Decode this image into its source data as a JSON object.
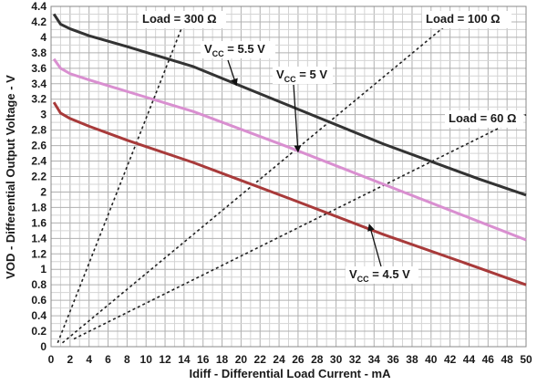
{
  "chart_data": {
    "type": "line",
    "xlabel": "Idiff - Differential Load Current  - mA",
    "ylabel": "VOD - Differential Output Voltage - V",
    "xlim": [
      0,
      50
    ],
    "ylim": [
      0,
      4.4
    ],
    "x_ticks": [
      "0",
      "2",
      "4",
      "6",
      "8",
      "10",
      "12",
      "14",
      "16",
      "18",
      "20",
      "22",
      "24",
      "26",
      "28",
      "30",
      "32",
      "34",
      "36",
      "38",
      "40",
      "42",
      "44",
      "46",
      "48",
      "50"
    ],
    "y_ticks": [
      "0",
      "0.2",
      "0.4",
      "0.6",
      "0.8",
      "1",
      "1.2",
      "1.4",
      "1.6",
      "1.8",
      "2",
      "2.2",
      "2.4",
      "2.6",
      "2.8",
      "3",
      "3.2",
      "3.4",
      "3.6",
      "3.8",
      "4",
      "4.2",
      "4.4"
    ],
    "grid": true,
    "series": [
      {
        "name": "VCC = 5.5 V",
        "label_main": "V",
        "label_sub": "CC",
        "label_rest": " = 5.5 V",
        "color": "#333333",
        "x": [
          0.3,
          1,
          2,
          4,
          8,
          15,
          25,
          35,
          45,
          50
        ],
        "y": [
          4.3,
          4.17,
          4.11,
          4.02,
          3.88,
          3.62,
          3.12,
          2.62,
          2.17,
          1.96
        ]
      },
      {
        "name": "VCC = 5 V",
        "label_main": "V",
        "label_sub": "CC",
        "label_rest": " = 5 V",
        "color": "#d98fd0",
        "x": [
          0.3,
          1,
          2,
          4,
          8,
          15,
          25,
          35,
          45,
          50
        ],
        "y": [
          3.72,
          3.6,
          3.53,
          3.45,
          3.3,
          3.04,
          2.58,
          2.1,
          1.62,
          1.38
        ]
      },
      {
        "name": "VCC = 4.5 V",
        "label_main": "V",
        "label_sub": "CC",
        "label_rest": " = 4.5 V",
        "color": "#a83a3a",
        "x": [
          0.3,
          1,
          2,
          4,
          8,
          15,
          25,
          35,
          45,
          50
        ],
        "y": [
          3.16,
          3.02,
          2.95,
          2.85,
          2.67,
          2.38,
          1.92,
          1.45,
          1.02,
          0.8
        ]
      }
    ],
    "load_lines": [
      {
        "label": "Load = 300 Ω",
        "x": [
          0.7,
          14
        ],
        "y": [
          0.05,
          4.2
        ]
      },
      {
        "label": "Load = 100 Ω",
        "x": [
          1.2,
          42
        ],
        "y": [
          0.05,
          4.2
        ]
      },
      {
        "label": "Load = 60 Ω",
        "x": [
          2.4,
          50
        ],
        "y": [
          0.1,
          3.0
        ]
      }
    ]
  }
}
